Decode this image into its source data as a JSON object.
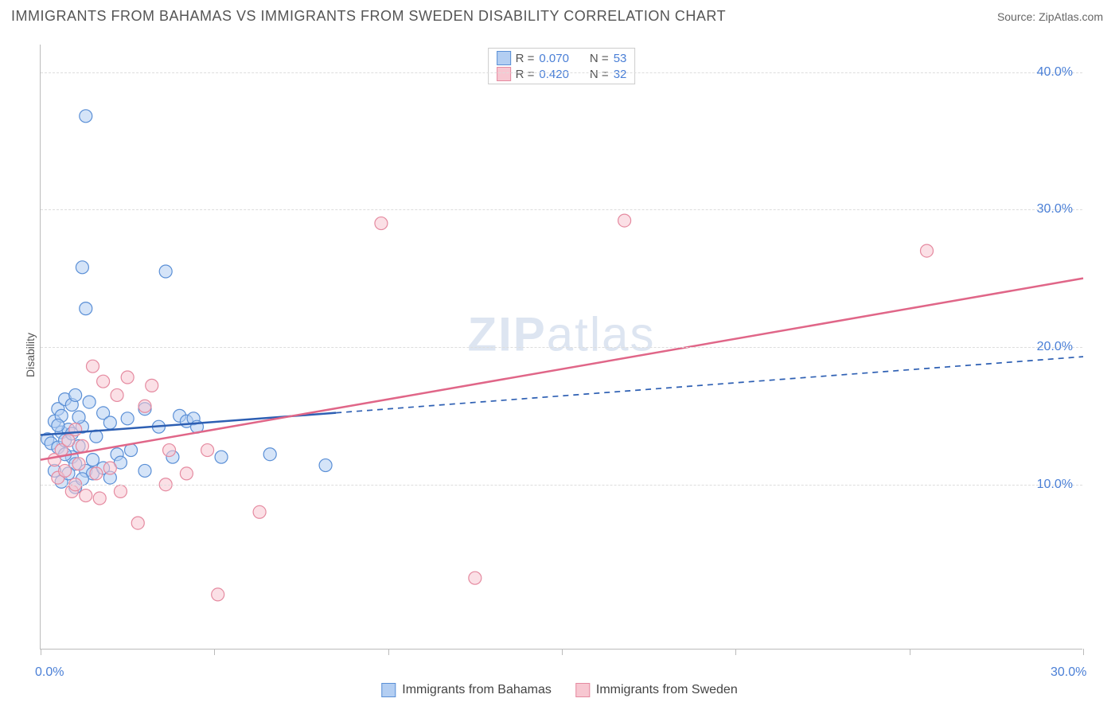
{
  "header": {
    "title": "IMMIGRANTS FROM BAHAMAS VS IMMIGRANTS FROM SWEDEN DISABILITY CORRELATION CHART",
    "source_prefix": "Source: ",
    "source_name": "ZipAtlas.com"
  },
  "ylabel": "Disability",
  "watermark": {
    "zip": "ZIP",
    "atlas": "atlas"
  },
  "legend_top": {
    "rows": [
      {
        "swatch_fill": "#b3cef2",
        "swatch_border": "#5a8fd6",
        "r_label": "R =",
        "r_value": "0.070",
        "n_label": "N =",
        "n_value": "53"
      },
      {
        "swatch_fill": "#f7c7d1",
        "swatch_border": "#e58aa0",
        "r_label": "R =",
        "r_value": "0.420",
        "n_label": "N =",
        "n_value": "32"
      }
    ]
  },
  "legend_bottom": {
    "items": [
      {
        "swatch_fill": "#b3cef2",
        "swatch_border": "#5a8fd6",
        "label": "Immigrants from Bahamas"
      },
      {
        "swatch_fill": "#f7c7d1",
        "swatch_border": "#e58aa0",
        "label": "Immigrants from Sweden"
      }
    ]
  },
  "chart": {
    "type": "scatter",
    "background_color": "#ffffff",
    "grid_color": "#dddddd",
    "axis_color": "#bbbbbb",
    "xlim": [
      0,
      30
    ],
    "ylim": [
      -2,
      42
    ],
    "yticks": [
      {
        "v": 10,
        "label": "10.0%"
      },
      {
        "v": 20,
        "label": "20.0%"
      },
      {
        "v": 30,
        "label": "30.0%"
      },
      {
        "v": 40,
        "label": "40.0%"
      }
    ],
    "xticks_major": [
      0,
      5,
      10,
      15,
      20,
      25,
      30
    ],
    "xtick_labels": [
      {
        "v": 0,
        "label": "0.0%"
      },
      {
        "v": 30,
        "label": "30.0%"
      }
    ],
    "marker_radius": 8,
    "marker_opacity": 0.55,
    "series": [
      {
        "name": "bahamas",
        "fill": "#b3cef2",
        "stroke": "#5a8fd6",
        "points": [
          [
            0.2,
            13.3
          ],
          [
            0.3,
            13.0
          ],
          [
            0.4,
            14.6
          ],
          [
            0.5,
            12.7
          ],
          [
            0.5,
            15.5
          ],
          [
            0.6,
            13.8
          ],
          [
            0.6,
            15.0
          ],
          [
            0.7,
            16.2
          ],
          [
            0.7,
            13.2
          ],
          [
            0.8,
            14.0
          ],
          [
            0.9,
            12.0
          ],
          [
            0.9,
            15.8
          ],
          [
            1.0,
            11.5
          ],
          [
            1.0,
            16.5
          ],
          [
            1.1,
            12.8
          ],
          [
            1.2,
            14.2
          ],
          [
            1.2,
            25.8
          ],
          [
            1.3,
            11.0
          ],
          [
            1.3,
            22.8
          ],
          [
            1.3,
            36.8
          ],
          [
            1.4,
            16.0
          ],
          [
            1.5,
            10.8
          ],
          [
            1.5,
            11.8
          ],
          [
            1.6,
            13.5
          ],
          [
            1.8,
            15.2
          ],
          [
            1.8,
            11.2
          ],
          [
            2.0,
            10.5
          ],
          [
            2.0,
            14.5
          ],
          [
            2.2,
            12.2
          ],
          [
            2.3,
            11.6
          ],
          [
            2.5,
            14.8
          ],
          [
            2.6,
            12.5
          ],
          [
            3.0,
            11.0
          ],
          [
            3.0,
            15.5
          ],
          [
            3.4,
            14.2
          ],
          [
            3.6,
            25.5
          ],
          [
            3.8,
            12.0
          ],
          [
            4.0,
            15.0
          ],
          [
            4.2,
            14.6
          ],
          [
            4.4,
            14.8
          ],
          [
            4.5,
            14.2
          ],
          [
            5.2,
            12.0
          ],
          [
            6.6,
            12.2
          ],
          [
            8.2,
            11.4
          ],
          [
            0.4,
            11.0
          ],
          [
            0.6,
            10.2
          ],
          [
            0.8,
            10.8
          ],
          [
            1.0,
            9.8
          ],
          [
            1.2,
            10.4
          ],
          [
            0.5,
            14.3
          ],
          [
            0.7,
            12.2
          ],
          [
            0.9,
            13.7
          ],
          [
            1.1,
            14.9
          ]
        ],
        "trend": {
          "color": "#2d5fb3",
          "width": 2.5,
          "solid_to_x": 8.5,
          "y_at_0": 13.6,
          "y_at_30": 19.3
        }
      },
      {
        "name": "sweden",
        "fill": "#f7c7d1",
        "stroke": "#e58aa0",
        "points": [
          [
            0.4,
            11.8
          ],
          [
            0.5,
            10.5
          ],
          [
            0.6,
            12.5
          ],
          [
            0.7,
            11.0
          ],
          [
            0.8,
            13.2
          ],
          [
            0.9,
            9.5
          ],
          [
            1.0,
            14.0
          ],
          [
            1.0,
            10.0
          ],
          [
            1.1,
            11.5
          ],
          [
            1.2,
            12.8
          ],
          [
            1.3,
            9.2
          ],
          [
            1.5,
            18.6
          ],
          [
            1.6,
            10.8
          ],
          [
            1.7,
            9.0
          ],
          [
            1.8,
            17.5
          ],
          [
            2.0,
            11.2
          ],
          [
            2.2,
            16.5
          ],
          [
            2.3,
            9.5
          ],
          [
            2.5,
            17.8
          ],
          [
            2.8,
            7.2
          ],
          [
            3.2,
            17.2
          ],
          [
            3.6,
            10.0
          ],
          [
            3.7,
            12.5
          ],
          [
            4.2,
            10.8
          ],
          [
            4.8,
            12.5
          ],
          [
            5.1,
            2.0
          ],
          [
            6.3,
            8.0
          ],
          [
            9.8,
            29.0
          ],
          [
            12.5,
            3.2
          ],
          [
            16.8,
            29.2
          ],
          [
            25.5,
            27.0
          ],
          [
            3.0,
            15.7
          ]
        ],
        "trend": {
          "color": "#e06688",
          "width": 2.5,
          "solid_to_x": 30,
          "y_at_0": 11.8,
          "y_at_30": 25.0
        }
      }
    ]
  }
}
